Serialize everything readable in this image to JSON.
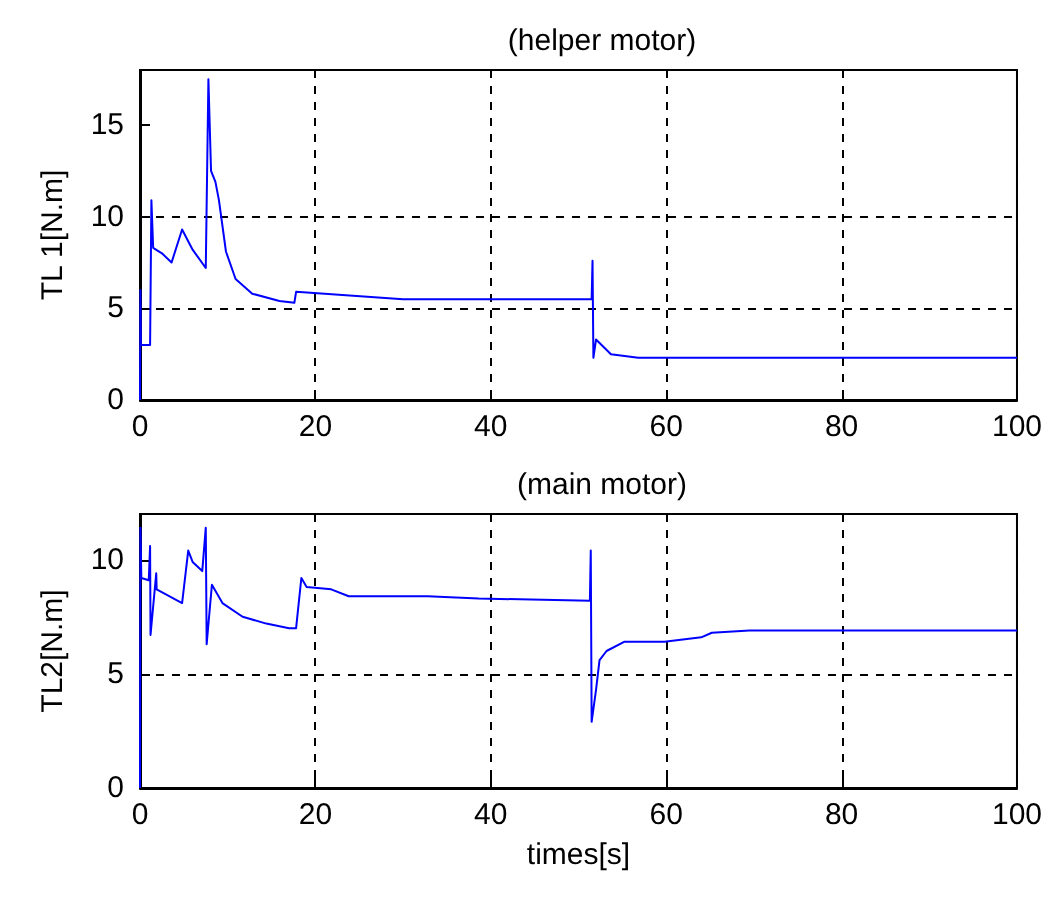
{
  "chart_data": [
    {
      "type": "line",
      "title": "(helper motor)",
      "ylabel": "TL 1[N.m]",
      "xlim": [
        0,
        100
      ],
      "xticks": [
        0,
        20,
        40,
        60,
        80,
        100
      ],
      "ylim": [
        0,
        18
      ],
      "yticks": [
        0,
        5,
        10,
        15
      ],
      "grid": true,
      "line_style": "solid",
      "marker": "none",
      "series": [
        {
          "color": "#0000ff",
          "x": [
            0,
            0.05,
            0.1,
            1.15,
            1.3,
            1.5,
            2.5,
            3.6,
            4.8,
            6,
            7.5,
            7.8,
            8.1,
            8.6,
            9,
            9.8,
            10.9,
            12.8,
            15.9,
            17.6,
            17.8,
            30,
            51.5,
            51.6,
            51.7,
            52,
            53.7,
            56.8,
            100
          ],
          "values": [
            0,
            6,
            3,
            3,
            10.9,
            8.3,
            8,
            7.5,
            9.3,
            8.2,
            7.2,
            17.5,
            12.5,
            11.9,
            10.9,
            8.1,
            6.6,
            5.8,
            5.4,
            5.3,
            5.9,
            5.5,
            5.5,
            7.6,
            2.3,
            3.3,
            2.5,
            2.3,
            2.3
          ]
        }
      ]
    },
    {
      "type": "line",
      "title": "(main motor)",
      "ylabel": "TL2[N.m]",
      "xlabel": "times[s]",
      "xlim": [
        0,
        100
      ],
      "xticks": [
        0,
        20,
        40,
        60,
        80,
        100
      ],
      "ylim": [
        0,
        12
      ],
      "yticks": [
        0,
        5,
        10
      ],
      "grid": true,
      "line_style": "solid",
      "marker": "none",
      "series": [
        {
          "color": "#0000ff",
          "x": [
            0,
            0.05,
            0.15,
            1,
            1.15,
            1.2,
            1.85,
            1.9,
            4.8,
            5.5,
            6,
            7.1,
            7.5,
            7.6,
            8.2,
            9.4,
            11.7,
            14.4,
            17,
            17.8,
            18.4,
            19,
            21.8,
            23.8,
            32.8,
            38.6,
            51.3,
            51.4,
            51.5,
            52,
            52.4,
            53.2,
            55.2,
            59.8,
            64,
            65.2,
            69.5,
            100
          ],
          "values": [
            0,
            11.4,
            9.2,
            9.1,
            10.6,
            6.7,
            9.4,
            8.7,
            8.1,
            10.4,
            9.9,
            9.5,
            11.4,
            6.3,
            8.9,
            8.1,
            7.5,
            7.2,
            7,
            7,
            9.2,
            8.8,
            8.7,
            8.4,
            8.4,
            8.3,
            8.2,
            10.4,
            2.9,
            4.3,
            5.6,
            6,
            6.4,
            6.4,
            6.6,
            6.8,
            6.9,
            6.9
          ]
        }
      ]
    }
  ]
}
